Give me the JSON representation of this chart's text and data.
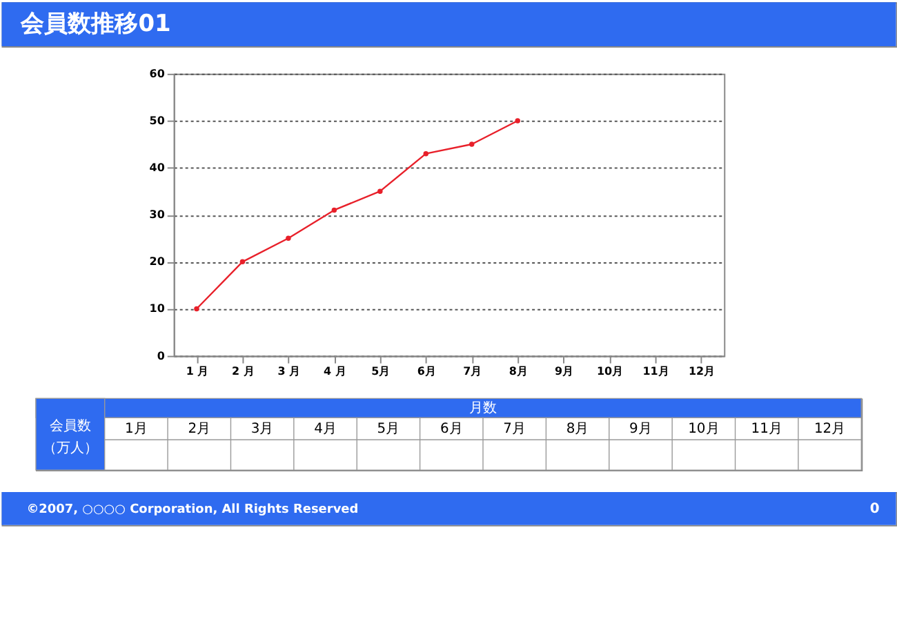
{
  "chart_data": {
    "type": "line",
    "title": "会員数推移01",
    "categories": [
      "1 月",
      "2 月",
      "3 月",
      "4 月",
      "5月",
      "6月",
      "7月",
      "8月",
      "9月",
      "10月",
      "11月",
      "12月"
    ],
    "series": [
      {
        "color": "#e8202a",
        "values": [
          10,
          20,
          25,
          31,
          35,
          43,
          45,
          50,
          null,
          null,
          null,
          null
        ]
      }
    ],
    "ylim": [
      0,
      60
    ],
    "yticks": [
      0,
      10,
      20,
      30,
      40,
      50,
      60
    ],
    "grid": "y",
    "marker": "circle",
    "line_style": "solid",
    "legend": false,
    "annotations": [
      "月数",
      "会員数",
      "（万人）",
      "1月",
      "2月",
      "3月",
      "4月",
      "5月",
      "6月",
      "7月",
      "8月",
      "9月",
      "10月",
      "11月",
      "12月",
      "©2007, ○○○○ Corporation, All Rights Reserved",
      "0"
    ]
  }
}
